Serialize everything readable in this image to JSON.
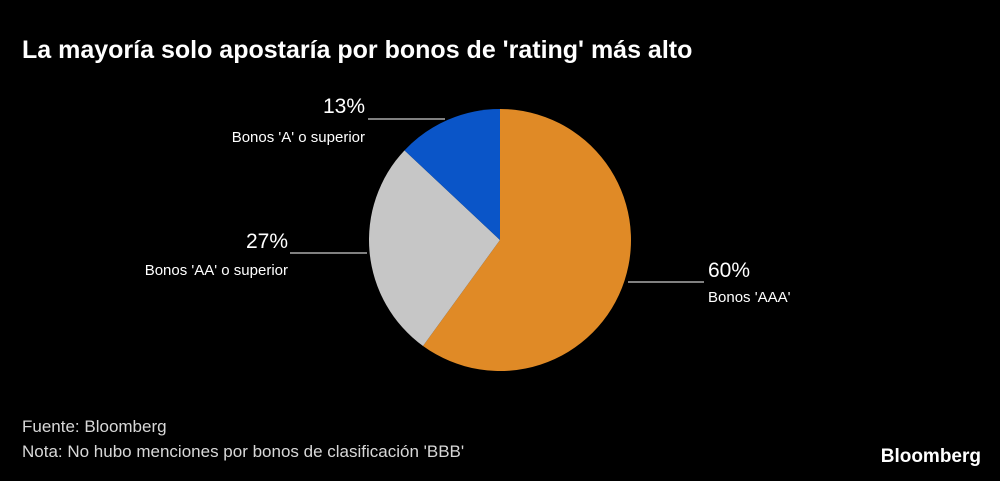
{
  "chart_data": {
    "type": "pie",
    "title": "La mayoría solo apostaría por bonos de 'rating' más alto",
    "categories": [
      "Bonos 'AAA'",
      "Bonos 'AA' o superior",
      "Bonos 'A' o superior"
    ],
    "values": [
      60,
      27,
      13
    ],
    "value_labels": [
      "60%",
      "27%",
      "13%"
    ],
    "colors": [
      "#e08a26",
      "#c6c6c6",
      "#0a55c8"
    ],
    "source": "Fuente: Bloomberg",
    "note": "Nota: No hubo menciones por bonos de clasificación 'BBB'",
    "logo": "Bloomberg"
  }
}
